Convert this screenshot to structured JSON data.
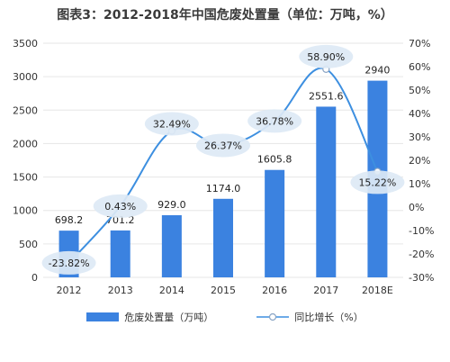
{
  "title": "图表3：2012-2018年中国危废处置量（单位：万吨，%）",
  "colors": {
    "bar": "#3b82e0",
    "line": "#3d8fe0",
    "bubble": "#dde9f5",
    "grid": "#e6e6e6",
    "axis_text": "#333333"
  },
  "legend": {
    "bar_label": "危废处置量（万吨）",
    "line_label": "同比增长（%）"
  },
  "chart_data": {
    "type": "bar",
    "categories": [
      "2012",
      "2013",
      "2014",
      "2015",
      "2016",
      "2017",
      "2018E"
    ],
    "series": [
      {
        "name": "危废处置量（万吨）",
        "type": "bar",
        "axis": "left",
        "values": [
          698.2,
          701.2,
          929.0,
          1174.0,
          1605.8,
          2551.6,
          2940
        ],
        "labels": [
          "698.2",
          "701.2",
          "929.0",
          "1174.0",
          "1605.8",
          "2551.6",
          "2940"
        ]
      },
      {
        "name": "同比增长（%）",
        "type": "line",
        "axis": "right",
        "values": [
          -23.82,
          0.43,
          32.49,
          26.37,
          36.78,
          58.9,
          15.22
        ],
        "labels": [
          "-23.82%",
          "0.43%",
          "32.49%",
          "26.37%",
          "36.78%",
          "58.90%",
          "15.22%"
        ]
      }
    ],
    "ylim_left": [
      0,
      3500
    ],
    "yticks_left": [
      "0",
      "500",
      "1000",
      "1500",
      "2000",
      "2500",
      "3000",
      "3500"
    ],
    "ylim_right": [
      -30,
      70
    ],
    "yticks_right": [
      "-30%",
      "-20%",
      "-10%",
      "0%",
      "10%",
      "20%",
      "30%",
      "40%",
      "50%",
      "60%",
      "70%"
    ],
    "grid": true,
    "legend_position": "bottom"
  }
}
